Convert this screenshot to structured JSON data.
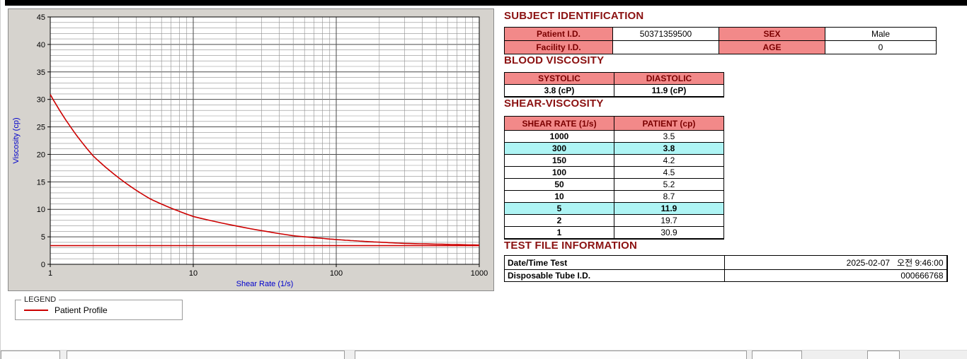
{
  "chart_data": {
    "type": "line",
    "title": "",
    "xlabel": "Shear Rate (1/s)",
    "ylabel": "Viscosity (cp)",
    "x_scale": "log",
    "xlim": [
      1,
      1000
    ],
    "ylim": [
      0,
      45
    ],
    "x_ticks": [
      1,
      10,
      100,
      1000
    ],
    "y_ticks": [
      0,
      5,
      10,
      15,
      20,
      25,
      30,
      35,
      40,
      45
    ],
    "grid": "dense",
    "series": [
      {
        "name": "Patient Profile",
        "color": "#cc0000",
        "x": [
          1,
          2,
          5,
          10,
          50,
          100,
          150,
          300,
          1000
        ],
        "y": [
          30.9,
          19.7,
          11.9,
          8.7,
          5.2,
          4.5,
          4.2,
          3.8,
          3.5
        ]
      },
      {
        "name": "reference-line",
        "color": "#cc0000",
        "x": [
          1,
          1000
        ],
        "y": [
          3.4,
          3.4
        ]
      }
    ],
    "legend": {
      "title": "LEGEND",
      "entries": [
        {
          "label": "Patient Profile",
          "color": "#cc0000"
        }
      ]
    }
  },
  "subject_identification": {
    "heading": "SUBJECT IDENTIFICATION",
    "rows": [
      {
        "label1": "Patient I.D.",
        "value1": "50371359500",
        "label2": "SEX",
        "value2": "Male"
      },
      {
        "label1": "Facility I.D.",
        "value1": "",
        "label2": "AGE",
        "value2": "0"
      }
    ]
  },
  "blood_viscosity": {
    "heading": "BLOOD VISCOSITY",
    "columns": [
      "SYSTOLIC",
      "DIASTOLIC"
    ],
    "values": [
      "3.8 (cP)",
      "11.9 (cP)"
    ]
  },
  "shear_viscosity": {
    "heading": "SHEAR-VISCOSITY",
    "columns": [
      "SHEAR RATE (1/s)",
      "PATIENT (cp)"
    ],
    "rows": [
      {
        "rate": "1000",
        "value": "3.5",
        "highlight": false
      },
      {
        "rate": "300",
        "value": "3.8",
        "highlight": true
      },
      {
        "rate": "150",
        "value": "4.2",
        "highlight": false
      },
      {
        "rate": "100",
        "value": "4.5",
        "highlight": false
      },
      {
        "rate": "50",
        "value": "5.2",
        "highlight": false
      },
      {
        "rate": "10",
        "value": "8.7",
        "highlight": false
      },
      {
        "rate": "5",
        "value": "11.9",
        "highlight": true
      },
      {
        "rate": "2",
        "value": "19.7",
        "highlight": false
      },
      {
        "rate": "1",
        "value": "30.9",
        "highlight": false
      }
    ]
  },
  "test_file_information": {
    "heading": "TEST FILE INFORMATION",
    "rows": [
      {
        "label": "Date/Time Test",
        "value": "2025-02-07   오전 9:46:00"
      },
      {
        "label": "Disposable Tube I.D.",
        "value": "000666768"
      }
    ]
  }
}
